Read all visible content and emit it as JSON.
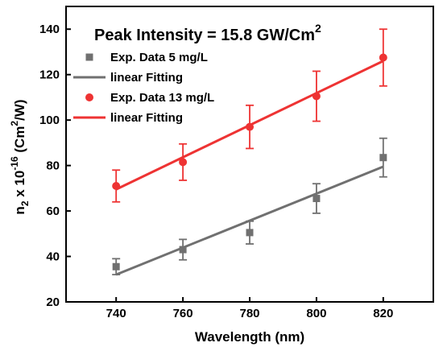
{
  "chart_data": {
    "type": "scatter",
    "title": "Peak Intensity = 15.8 GW/Cm",
    "title_sup": "2",
    "xlabel": "Wavelength (nm)",
    "ylabel": {
      "n_base": "n",
      "n_sub": "2",
      "times": " x 10",
      "exp": "-16",
      "unit_open": " (Cm",
      "unit_sup": "2",
      "unit_close": "/W)"
    },
    "xlim": [
      725,
      835
    ],
    "ylim": [
      20,
      150
    ],
    "xticks": [
      740,
      760,
      780,
      800,
      820
    ],
    "yticks": [
      20,
      40,
      60,
      80,
      100,
      120,
      140
    ],
    "grid": false,
    "legend_position": "top-left",
    "series": [
      {
        "name": "Exp. Data 5 mg/L",
        "kind": "points",
        "marker": "square",
        "color": "#707070",
        "x": [
          740,
          760,
          780,
          800,
          820
        ],
        "y": [
          35.5,
          43,
          50.5,
          65.5,
          83.5
        ],
        "err": [
          3.5,
          4.5,
          5,
          6.5,
          8.5
        ]
      },
      {
        "name": "linear Fitting",
        "kind": "line",
        "color": "#707070",
        "x": [
          740,
          820
        ],
        "y": [
          32,
          79.5
        ]
      },
      {
        "name": "Exp. Data 13 mg/L",
        "kind": "points",
        "marker": "circle",
        "color": "#ee3333",
        "x": [
          740,
          760,
          780,
          800,
          820
        ],
        "y": [
          71,
          81.5,
          97,
          110.5,
          127.5
        ],
        "err": [
          7,
          8,
          9.5,
          11,
          12.5
        ]
      },
      {
        "name": "linear Fitting",
        "kind": "line",
        "color": "#ee3333",
        "x": [
          740,
          820
        ],
        "y": [
          69.5,
          126
        ]
      }
    ]
  }
}
